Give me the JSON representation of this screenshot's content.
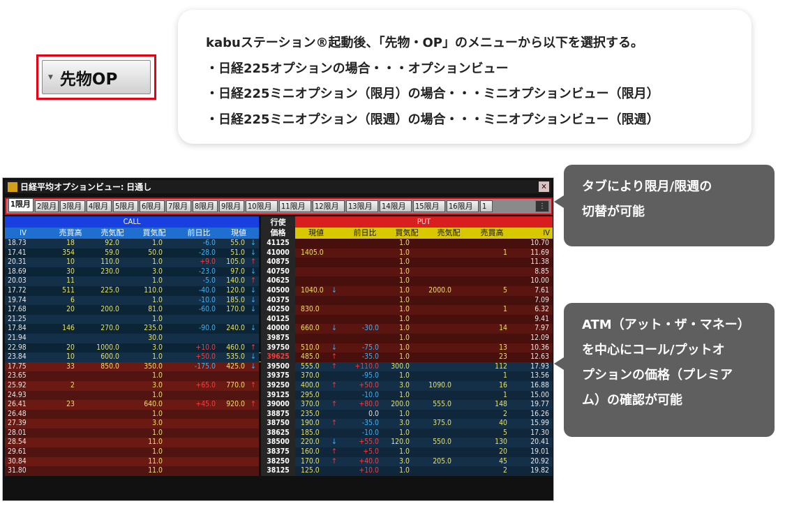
{
  "sample_button": {
    "label": "先物OP"
  },
  "instructions": {
    "lines": [
      "kabuステーション®起動後、「先物・OP」のメニューから以下を選択する。",
      "・日経225オプションの場合・・・オプションビュー",
      "・日経225ミニオプション（限月）の場合・・・ミニオプションビュー（限月）",
      "・日経225ミニオプション（限週）の場合・・・ミニオプションビュー（限週）"
    ]
  },
  "callouts": {
    "tabs": [
      "タブにより限月/限週の",
      "切替が可能"
    ],
    "atm": [
      "ATM（アット・ザ・マネー）",
      "を中心にコール/プットオ",
      "プションの価格（プレミア",
      "ム）の確認が可能"
    ]
  },
  "window": {
    "title": "日経平均オプションビュー: 日通し",
    "close": "✕",
    "tabs": [
      "1限月",
      "2限月",
      "3限月",
      "4限月",
      "5限月",
      "6限月",
      "7限月",
      "8限月",
      "9限月",
      "10限月",
      "11限月",
      "12限月",
      "13限月",
      "14限月",
      "15限月",
      "16限月",
      "1"
    ],
    "call_label": "CALL",
    "put_label": "PUT",
    "strike_label": [
      "行使",
      "価格"
    ],
    "call_cols": [
      "IV",
      "売買高",
      "売気配",
      "買気配",
      "前日比",
      "現値"
    ],
    "put_cols": [
      "現値",
      "前日比",
      "買気配",
      "売気配",
      "売買高",
      "IV"
    ],
    "colors": {
      "call_header": "#1a3fe0",
      "put_header": "#d81e1e",
      "call_cols_bg": "#1e6fd0",
      "put_cols_bg": "#d8c800",
      "up": "#ff3a3a",
      "down": "#36b6ff",
      "atm_strike": "#ff3a3a"
    },
    "rows": [
      {
        "civ": "18.73",
        "cvol": "18",
        "cask": "92.0",
        "cbid": "1.0",
        "cchg": "-6.0",
        "cprc": "55.0",
        "carr": "↓",
        "k": "41125",
        "pprc": "",
        "parr": "",
        "pchg": "",
        "pbid": "1.0",
        "pask": "",
        "pvol": "",
        "piv": "10.70"
      },
      {
        "civ": "17.41",
        "cvol": "354",
        "cask": "59.0",
        "cbid": "50.0",
        "cchg": "-28.0",
        "cprc": "51.0",
        "carr": "↓",
        "k": "41000",
        "pprc": "1405.0",
        "parr": "",
        "pchg": "",
        "pbid": "1.0",
        "pask": "",
        "pvol": "1",
        "piv": "11.69"
      },
      {
        "civ": "20.31",
        "cvol": "10",
        "cask": "110.0",
        "cbid": "1.0",
        "cchg": "+9.0",
        "cprc": "105.0",
        "carr": "↑",
        "k": "40875",
        "pprc": "",
        "parr": "",
        "pchg": "",
        "pbid": "1.0",
        "pask": "",
        "pvol": "",
        "piv": "11.38"
      },
      {
        "civ": "18.69",
        "cvol": "30",
        "cask": "230.0",
        "cbid": "3.0",
        "cchg": "-23.0",
        "cprc": "97.0",
        "carr": "↓",
        "k": "40750",
        "pprc": "",
        "parr": "",
        "pchg": "",
        "pbid": "1.0",
        "pask": "",
        "pvol": "",
        "piv": "8.85"
      },
      {
        "civ": "20.03",
        "cvol": "11",
        "cask": "",
        "cbid": "1.0",
        "cchg": "-5.0",
        "cprc": "140.0",
        "carr": "↑",
        "k": "40625",
        "pprc": "",
        "parr": "",
        "pchg": "",
        "pbid": "1.0",
        "pask": "",
        "pvol": "",
        "piv": "10.00"
      },
      {
        "civ": "17.72",
        "cvol": "511",
        "cask": "225.0",
        "cbid": "110.0",
        "cchg": "-40.0",
        "cprc": "120.0",
        "carr": "↓",
        "k": "40500",
        "pprc": "1040.0",
        "parr": "↓",
        "pchg": "",
        "pbid": "1.0",
        "pask": "2000.0",
        "pvol": "5",
        "piv": "7.61"
      },
      {
        "civ": "19.74",
        "cvol": "6",
        "cask": "",
        "cbid": "1.0",
        "cchg": "-10.0",
        "cprc": "185.0",
        "carr": "↓",
        "k": "40375",
        "pprc": "",
        "parr": "",
        "pchg": "",
        "pbid": "1.0",
        "pask": "",
        "pvol": "",
        "piv": "7.09"
      },
      {
        "civ": "17.68",
        "cvol": "20",
        "cask": "200.0",
        "cbid": "81.0",
        "cchg": "-60.0",
        "cprc": "170.0",
        "carr": "↓",
        "k": "40250",
        "pprc": "830.0",
        "parr": "",
        "pchg": "",
        "pbid": "1.0",
        "pask": "",
        "pvol": "1",
        "piv": "6.32"
      },
      {
        "civ": "21.25",
        "cvol": "",
        "cask": "",
        "cbid": "1.0",
        "cchg": "",
        "cprc": "",
        "carr": "",
        "k": "40125",
        "pprc": "",
        "parr": "",
        "pchg": "",
        "pbid": "1.0",
        "pask": "",
        "pvol": "",
        "piv": "9.41"
      },
      {
        "civ": "17.84",
        "cvol": "146",
        "cask": "270.0",
        "cbid": "235.0",
        "cchg": "-90.0",
        "cprc": "240.0",
        "carr": "↓",
        "k": "40000",
        "pprc": "660.0",
        "parr": "↓",
        "pchg": "-30.0",
        "pbid": "1.0",
        "pask": "",
        "pvol": "14",
        "piv": "7.97"
      },
      {
        "civ": "21.94",
        "cvol": "",
        "cask": "",
        "cbid": "30.0",
        "cchg": "",
        "cprc": "",
        "carr": "",
        "k": "39875",
        "pprc": "",
        "parr": "",
        "pchg": "",
        "pbid": "1.0",
        "pask": "",
        "pvol": "",
        "piv": "12.09"
      },
      {
        "civ": "22.98",
        "cvol": "20",
        "cask": "1000.0",
        "cbid": "3.0",
        "cchg": "+10.0",
        "cprc": "460.0",
        "carr": "↑",
        "k": "39750",
        "pprc": "510.0",
        "parr": "↓",
        "pchg": "-75.0",
        "pbid": "1.0",
        "pask": "",
        "pvol": "13",
        "piv": "10.36"
      },
      {
        "civ": "23.84",
        "cvol": "10",
        "cask": "600.0",
        "cbid": "1.0",
        "cchg": "+50.0",
        "cprc": "535.0",
        "carr": "↓",
        "k": "39625",
        "pprc": "485.0",
        "parr": "↑",
        "pchg": "-35.0",
        "pbid": "1.0",
        "pask": "",
        "pvol": "23",
        "piv": "12.63"
      },
      {
        "civ": "17.75",
        "cvol": "33",
        "cask": "850.0",
        "cbid": "350.0",
        "cchg": "-175.0",
        "cprc": "425.0",
        "carr": "↓",
        "k": "39500",
        "pprc": "555.0",
        "parr": "↑",
        "pchg": "+110.0",
        "pbid": "300.0",
        "pask": "",
        "pvol": "112",
        "piv": "17.93"
      },
      {
        "civ": "23.65",
        "cvol": "",
        "cask": "",
        "cbid": "1.0",
        "cchg": "",
        "cprc": "",
        "carr": "",
        "k": "39375",
        "pprc": "370.0",
        "parr": "",
        "pchg": "-95.0",
        "pbid": "1.0",
        "pask": "",
        "pvol": "1",
        "piv": "13.56"
      },
      {
        "civ": "25.92",
        "cvol": "2",
        "cask": "",
        "cbid": "3.0",
        "cchg": "+65.0",
        "cprc": "770.0",
        "carr": "↑",
        "k": "39250",
        "pprc": "400.0",
        "parr": "↑",
        "pchg": "+50.0",
        "pbid": "3.0",
        "pask": "1090.0",
        "pvol": "16",
        "piv": "16.88"
      },
      {
        "civ": "24.93",
        "cvol": "",
        "cask": "",
        "cbid": "1.0",
        "cchg": "",
        "cprc": "",
        "carr": "",
        "k": "39125",
        "pprc": "295.0",
        "parr": "",
        "pchg": "-10.0",
        "pbid": "1.0",
        "pask": "",
        "pvol": "1",
        "piv": "15.00"
      },
      {
        "civ": "26.41",
        "cvol": "23",
        "cask": "",
        "cbid": "640.0",
        "cchg": "+45.0",
        "cprc": "920.0",
        "carr": "↑",
        "k": "39000",
        "pprc": "370.0",
        "parr": "↑",
        "pchg": "+80.0",
        "pbid": "200.0",
        "pask": "555.0",
        "pvol": "148",
        "piv": "19.77"
      },
      {
        "civ": "26.48",
        "cvol": "",
        "cask": "",
        "cbid": "1.0",
        "cchg": "",
        "cprc": "",
        "carr": "",
        "k": "38875",
        "pprc": "235.0",
        "parr": "",
        "pchg": "0.0",
        "pbid": "1.0",
        "pask": "",
        "pvol": "2",
        "piv": "16.26"
      },
      {
        "civ": "27.39",
        "cvol": "",
        "cask": "",
        "cbid": "3.0",
        "cchg": "",
        "cprc": "",
        "carr": "",
        "k": "38750",
        "pprc": "190.0",
        "parr": "↑",
        "pchg": "-35.0",
        "pbid": "3.0",
        "pask": "375.0",
        "pvol": "40",
        "piv": "15.99"
      },
      {
        "civ": "28.01",
        "cvol": "",
        "cask": "",
        "cbid": "1.0",
        "cchg": "",
        "cprc": "",
        "carr": "",
        "k": "38625",
        "pprc": "185.0",
        "parr": "",
        "pchg": "-10.0",
        "pbid": "1.0",
        "pask": "",
        "pvol": "5",
        "piv": "17.30"
      },
      {
        "civ": "28.54",
        "cvol": "",
        "cask": "",
        "cbid": "11.0",
        "cchg": "",
        "cprc": "",
        "carr": "",
        "k": "38500",
        "pprc": "220.0",
        "parr": "↓",
        "pchg": "+55.0",
        "pbid": "120.0",
        "pask": "550.0",
        "pvol": "130",
        "piv": "20.41"
      },
      {
        "civ": "29.61",
        "cvol": "",
        "cask": "",
        "cbid": "1.0",
        "cchg": "",
        "cprc": "",
        "carr": "",
        "k": "38375",
        "pprc": "160.0",
        "parr": "↑",
        "pchg": "+5.0",
        "pbid": "1.0",
        "pask": "",
        "pvol": "20",
        "piv": "19.01"
      },
      {
        "civ": "30.84",
        "cvol": "",
        "cask": "",
        "cbid": "11.0",
        "cchg": "",
        "cprc": "",
        "carr": "",
        "k": "38250",
        "pprc": "170.0",
        "parr": "↑",
        "pchg": "+40.0",
        "pbid": "3.0",
        "pask": "205.0",
        "pvol": "45",
        "piv": "20.92"
      },
      {
        "civ": "31.80",
        "cvol": "",
        "cask": "",
        "cbid": "11.0",
        "cchg": "",
        "cprc": "",
        "carr": "",
        "k": "38125",
        "pprc": "125.0",
        "parr": "",
        "pchg": "+10.0",
        "pbid": "1.0",
        "pask": "",
        "pvol": "2",
        "piv": "19.82"
      }
    ]
  }
}
